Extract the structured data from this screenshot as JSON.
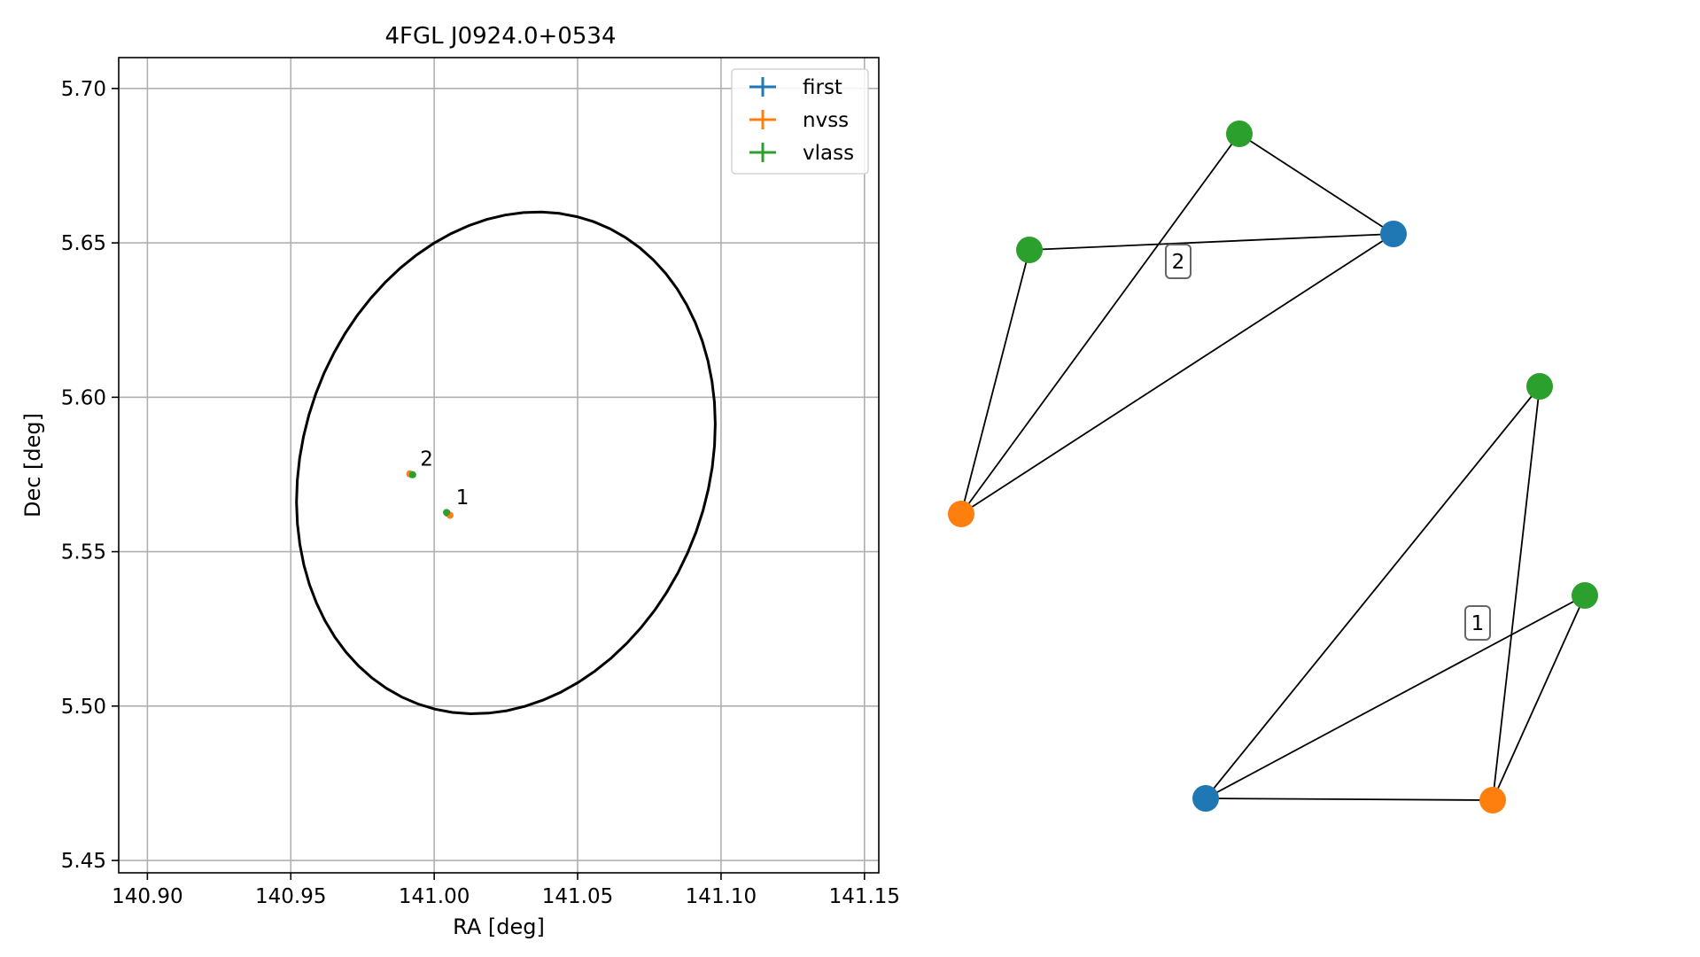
{
  "chart_data": [
    {
      "type": "scatter",
      "title": "4FGL J0924.0+0534",
      "xlabel": "RA [deg]",
      "ylabel": "Dec [deg]",
      "xlim": [
        140.89,
        141.155
      ],
      "ylim": [
        5.446,
        5.71
      ],
      "xticks": [
        "140.90",
        "140.95",
        "141.00",
        "141.05",
        "141.10",
        "141.15"
      ],
      "yticks": [
        "5.45",
        "5.50",
        "5.55",
        "5.60",
        "5.65",
        "5.70"
      ],
      "grid": true,
      "legend": {
        "placement": "top-right",
        "entries": [
          {
            "label": "first",
            "color": "#1f77b4"
          },
          {
            "label": "nvss",
            "color": "#ff7f0e"
          },
          {
            "label": "vlass",
            "color": "#2ca02c"
          }
        ]
      },
      "ellipse": {
        "center": [
          141.025,
          5.579
        ],
        "ra_extent": [
          140.952,
          141.098
        ],
        "dec_extent": [
          5.4975,
          5.66
        ],
        "color": "#000000"
      },
      "series": [
        {
          "name": "first",
          "color": "#1f77b4",
          "points": [
            [
              141.0045,
              5.5625
            ],
            [
              140.992,
              5.575
            ]
          ]
        },
        {
          "name": "nvss",
          "color": "#ff7f0e",
          "points": [
            [
              141.0055,
              5.5618
            ],
            [
              140.9915,
              5.5752
            ]
          ]
        },
        {
          "name": "vlass",
          "color": "#2ca02c",
          "points": [
            [
              141.0043,
              5.5627
            ],
            [
              140.9925,
              5.5749
            ]
          ]
        }
      ],
      "annotations": [
        {
          "text": "1",
          "x": 141.0045,
          "y": 5.5625
        },
        {
          "text": "2",
          "x": 140.992,
          "y": 5.575
        }
      ]
    },
    {
      "type": "network",
      "groups": [
        {
          "label": "2",
          "nodes": [
            {
              "id": "first",
              "color": "#1f77b4"
            },
            {
              "id": "nvss",
              "color": "#ff7f0e"
            },
            {
              "id": "vlass_a",
              "color": "#2ca02c"
            },
            {
              "id": "vlass_b",
              "color": "#2ca02c"
            }
          ],
          "edges": [
            [
              "vlass_a",
              "first"
            ],
            [
              "vlass_b",
              "first"
            ],
            [
              "nvss",
              "vlass_a"
            ],
            [
              "nvss",
              "vlass_b"
            ],
            [
              "nvss",
              "first"
            ]
          ]
        },
        {
          "label": "1",
          "nodes": [
            {
              "id": "first",
              "color": "#1f77b4"
            },
            {
              "id": "nvss",
              "color": "#ff7f0e"
            },
            {
              "id": "vlass_a",
              "color": "#2ca02c"
            },
            {
              "id": "vlass_b",
              "color": "#2ca02c"
            }
          ],
          "edges": [
            [
              "first",
              "vlass_a"
            ],
            [
              "first",
              "vlass_b"
            ],
            [
              "first",
              "nvss"
            ],
            [
              "nvss",
              "vlass_a"
            ],
            [
              "nvss",
              "vlass_b"
            ]
          ]
        }
      ]
    }
  ]
}
